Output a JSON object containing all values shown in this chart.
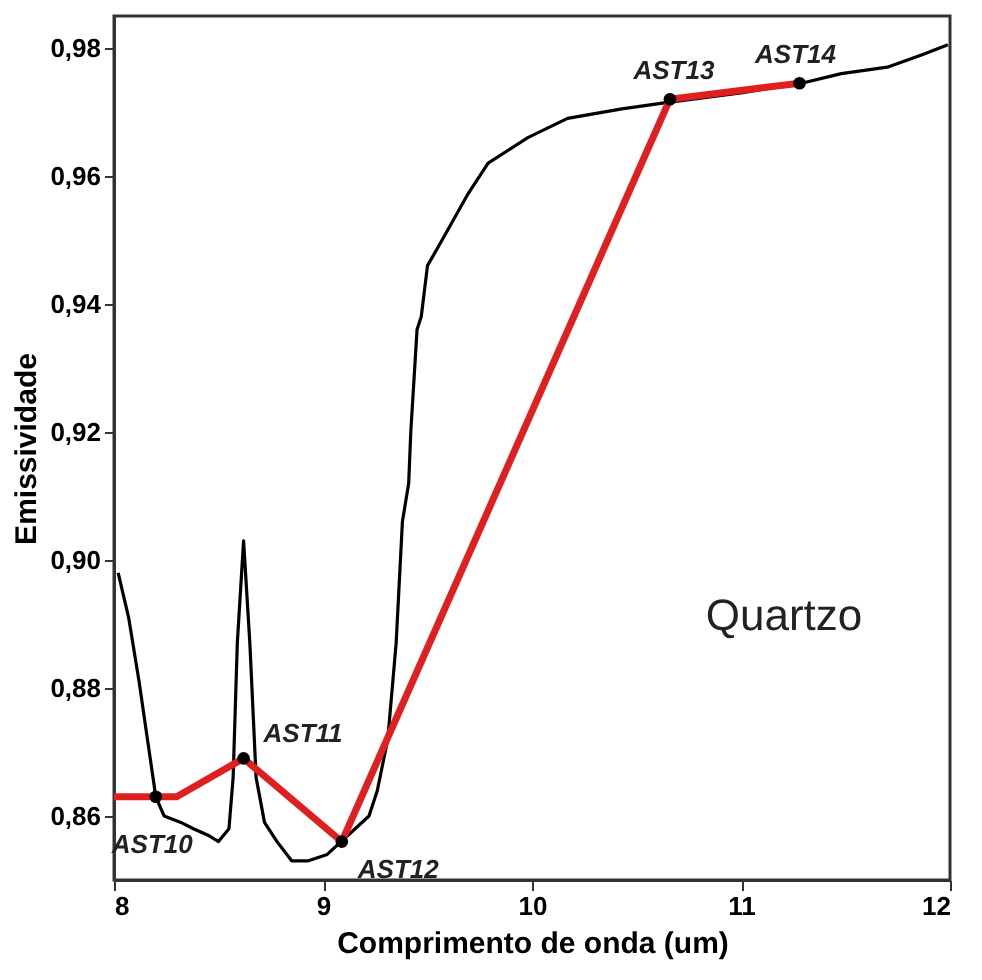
{
  "chart_data": {
    "type": "line",
    "xlabel": "Comprimento de onda (um)",
    "ylabel": "Emissividade",
    "xlim": [
      8,
      12
    ],
    "xticks": [
      8,
      9,
      10,
      11,
      12
    ],
    "ylim": [
      0.85,
      0.985
    ],
    "yticks": [
      {
        "value": 0.86,
        "label": "0,86"
      },
      {
        "value": 0.88,
        "label": "0,88"
      },
      {
        "value": 0.9,
        "label": "0,90"
      },
      {
        "value": 0.92,
        "label": "0,92"
      },
      {
        "value": 0.94,
        "label": "0,94"
      },
      {
        "value": 0.96,
        "label": "0,96"
      },
      {
        "value": 0.98,
        "label": "0,98"
      }
    ],
    "grid": false,
    "series": [
      {
        "color": "#000000",
        "x": [
          8.02,
          8.07,
          8.12,
          8.16,
          8.2,
          8.24,
          8.32,
          8.38,
          8.45,
          8.5,
          8.55,
          8.57,
          8.59,
          8.62,
          8.65,
          8.68,
          8.72,
          8.78,
          8.85,
          8.93,
          9.02,
          9.12,
          9.22,
          9.26,
          9.31,
          9.35,
          9.38,
          9.41,
          9.42,
          9.45,
          9.47,
          9.5,
          9.57,
          9.69,
          9.79,
          9.98,
          10.17,
          10.43,
          10.65,
          11.0,
          11.29,
          11.48,
          11.7,
          11.87,
          11.99
        ],
        "values": [
          0.898,
          0.891,
          0.881,
          0.872,
          0.863,
          0.86,
          0.859,
          0.858,
          0.857,
          0.856,
          0.858,
          0.866,
          0.887,
          0.903,
          0.887,
          0.866,
          0.859,
          0.856,
          0.853,
          0.853,
          0.854,
          0.857,
          0.86,
          0.864,
          0.872,
          0.887,
          0.906,
          0.912,
          0.92,
          0.936,
          0.938,
          0.946,
          0.95,
          0.957,
          0.962,
          0.966,
          0.969,
          0.9705,
          0.9715,
          0.973,
          0.9745,
          0.976,
          0.977,
          0.979,
          0.9805
        ]
      },
      {
        "color": "#e02020",
        "x": [
          8.0,
          8.2,
          8.3,
          8.62,
          9.09,
          10.66,
          11.28
        ],
        "values": [
          0.863,
          0.863,
          0.863,
          0.869,
          0.856,
          0.972,
          0.9745
        ]
      },
      {
        "type": "scatter",
        "color": "#000000",
        "marker": "circle",
        "x": [
          8.2,
          8.62,
          9.09,
          10.66,
          11.28
        ],
        "values": [
          0.863,
          0.869,
          0.856,
          0.972,
          0.9745
        ]
      }
    ],
    "annotations": [
      {
        "text": "AST10",
        "x": 8.2,
        "y": 0.863
      },
      {
        "text": "AST11",
        "x": 8.62,
        "y": 0.869
      },
      {
        "text": "AST12",
        "x": 9.09,
        "y": 0.856
      },
      {
        "text": "AST13",
        "x": 10.66,
        "y": 0.972
      },
      {
        "text": "AST14",
        "x": 11.28,
        "y": 0.9745
      },
      "Quartzo"
    ]
  }
}
